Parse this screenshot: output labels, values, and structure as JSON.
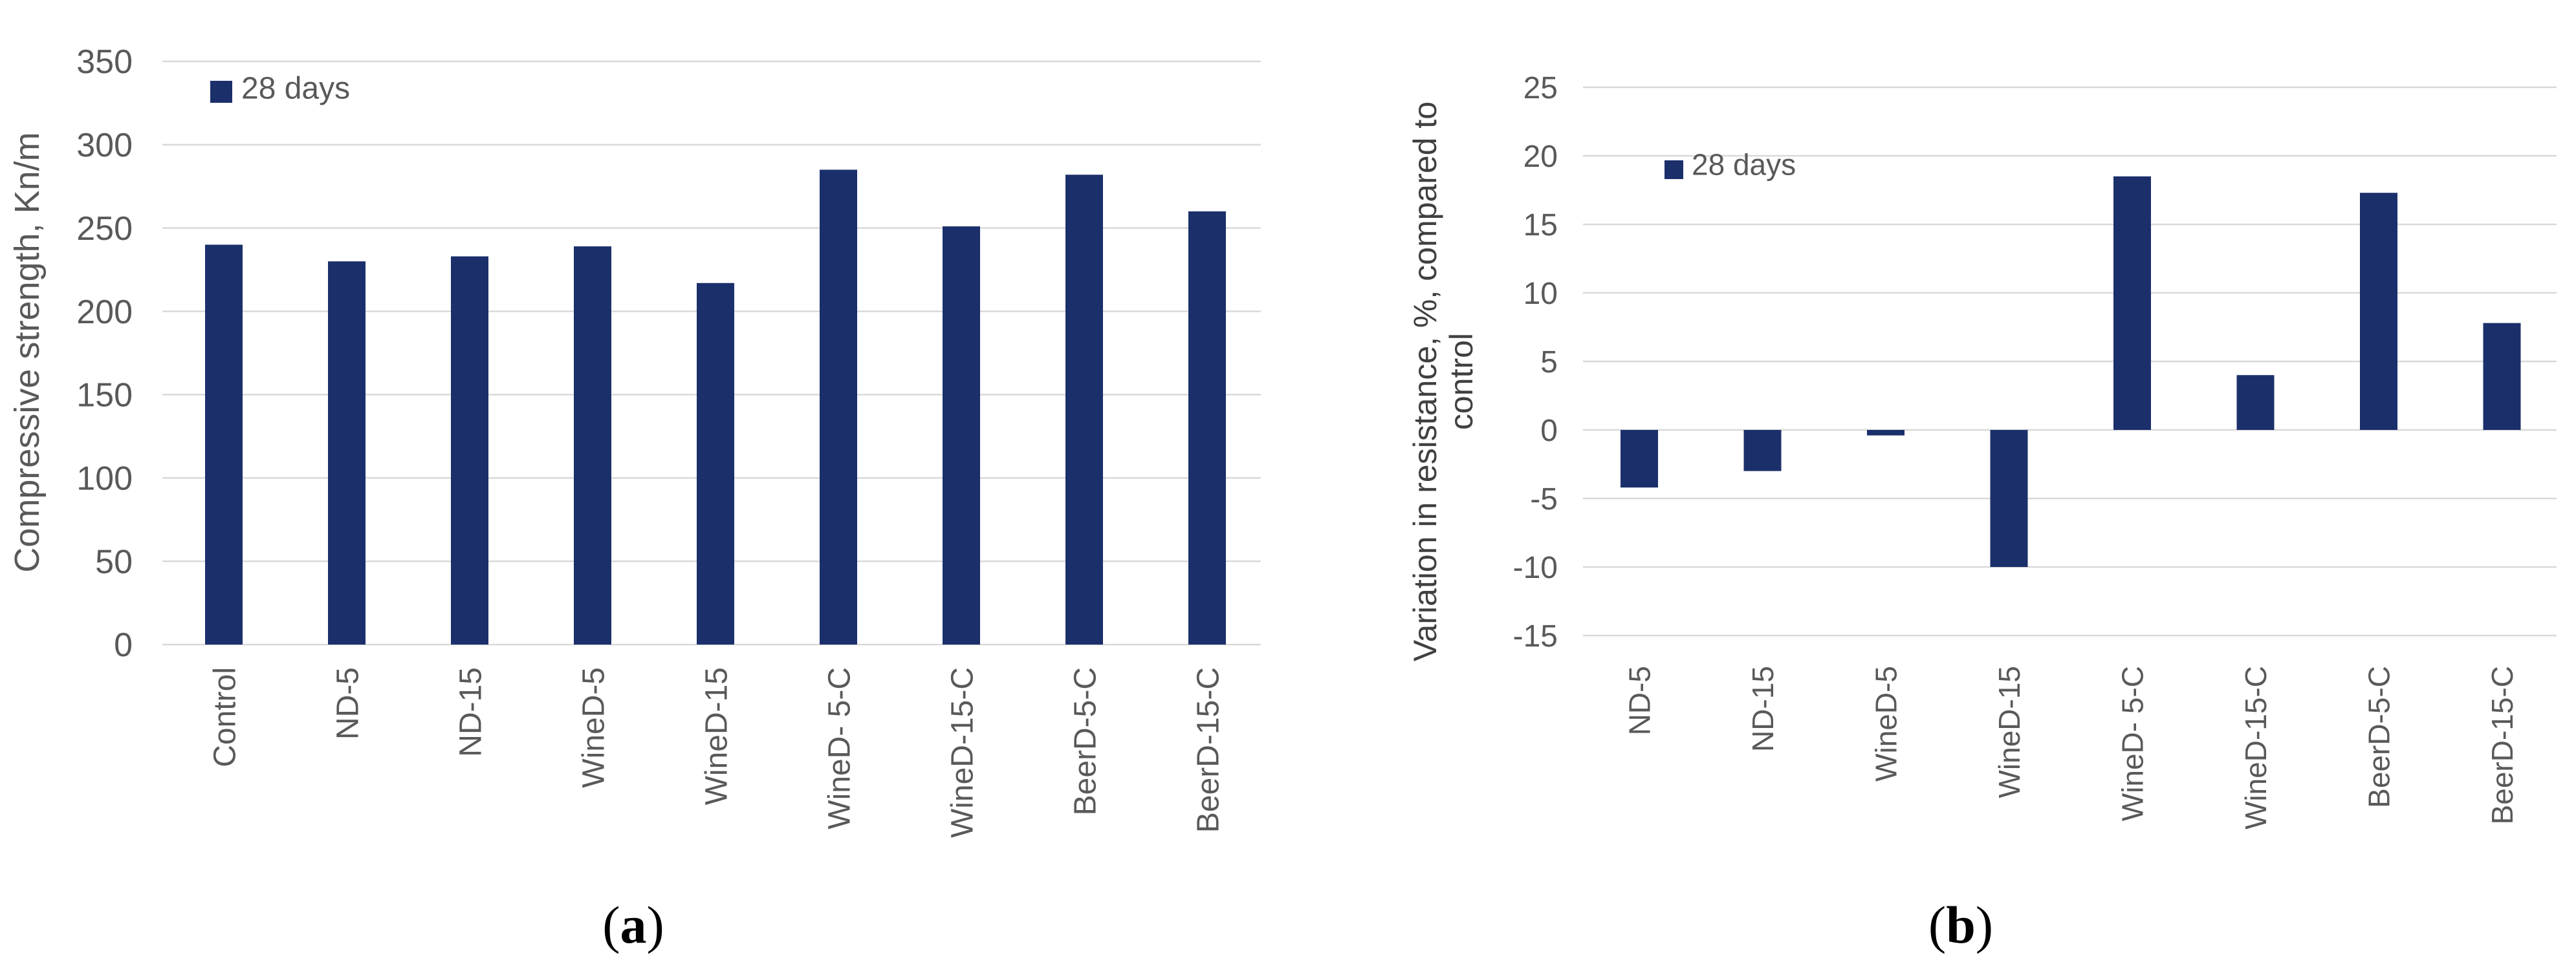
{
  "figure": {
    "background": "#ffffff",
    "bar_color": "#1B2F6B",
    "gridline_color": "#D9D9D9",
    "tick_text_color": "#595959",
    "category_text_color": "#595959",
    "legend_text_color": "#595959",
    "axis_title_color_a": "#595959",
    "axis_title_color_b": "#404040",
    "panel_label_color": "#000000"
  },
  "chart_data": [
    {
      "id": "a",
      "type": "bar",
      "panel_label": "(a)",
      "legend": "28 days",
      "legend_position": "top-left-inside",
      "ylabel": "Compressive strength, Kn/m",
      "xlabel": "",
      "grid": true,
      "ylim": [
        0,
        350
      ],
      "ytick_step": 50,
      "yticks": [
        350,
        300,
        250,
        200,
        150,
        100,
        50,
        0
      ],
      "categories": [
        "Control",
        "ND-5",
        "ND-15",
        "WineD-5",
        "WineD-15",
        "WineD- 5-C",
        "WineD-15-C",
        "BeerD-5-C",
        "BeerD-15-C"
      ],
      "values": [
        240,
        230,
        233,
        239,
        217,
        285,
        251,
        282,
        260
      ]
    },
    {
      "id": "b",
      "type": "bar",
      "panel_label": "(b)",
      "legend": "28 days",
      "legend_position": "top-left-inside",
      "ylabel_lines": [
        "Variation in resistance, %, compared to",
        "control"
      ],
      "xlabel": "",
      "grid": true,
      "ylim": [
        -15,
        25
      ],
      "ytick_step": 5,
      "yticks": [
        25,
        20,
        15,
        10,
        5,
        0,
        -5,
        -10,
        -15
      ],
      "categories": [
        "ND-5",
        "ND-15",
        "WineD-5",
        "WineD-15",
        "WineD- 5-C",
        "WineD-15-C",
        "BeerD-5-C",
        "BeerD-15-C"
      ],
      "values": [
        -4.2,
        -3,
        -0.4,
        -10,
        18.5,
        4,
        17.3,
        7.8
      ]
    }
  ]
}
